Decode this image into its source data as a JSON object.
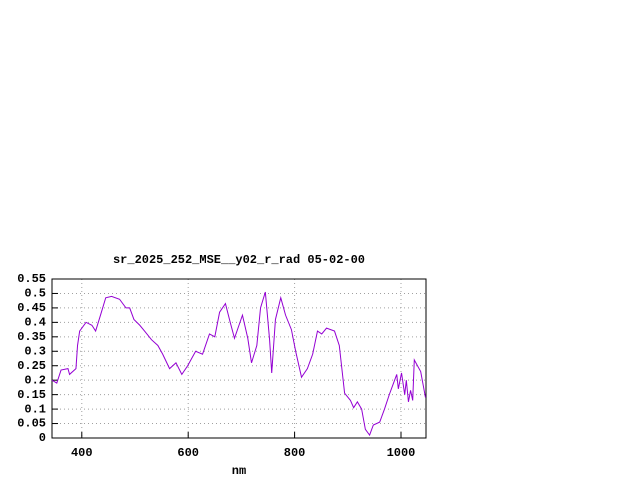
{
  "chart_data": {
    "type": "line",
    "title": "sr_2025_252_MSE__y02_r_rad 05-02-00",
    "x_label": "nm",
    "x": [
      344,
      353,
      361,
      374,
      377,
      389,
      392,
      396,
      408,
      419,
      426,
      436,
      445,
      456,
      471,
      483,
      490,
      498,
      509,
      518,
      531,
      543,
      552,
      565,
      577,
      588,
      599,
      614,
      627,
      640,
      650,
      659,
      670,
      679,
      687,
      702,
      712,
      719,
      729,
      736,
      745,
      753,
      757,
      764,
      774,
      783,
      794,
      802,
      813,
      824,
      834,
      843,
      851,
      860,
      875,
      884,
      894,
      905,
      911,
      918,
      926,
      933,
      941,
      948,
      960,
      969,
      978,
      986,
      992,
      995,
      1001,
      1007,
      1010,
      1014,
      1018,
      1022,
      1025,
      1031,
      1037,
      1042,
      1046
    ],
    "series": [
      {
        "color": "#9400d3",
        "values": [
          0.2,
          0.19,
          0.235,
          0.24,
          0.22,
          0.24,
          0.32,
          0.37,
          0.4,
          0.39,
          0.37,
          0.43,
          0.485,
          0.49,
          0.48,
          0.45,
          0.45,
          0.41,
          0.39,
          0.37,
          0.34,
          0.32,
          0.29,
          0.24,
          0.26,
          0.22,
          0.25,
          0.3,
          0.29,
          0.36,
          0.35,
          0.435,
          0.465,
          0.4,
          0.345,
          0.425,
          0.345,
          0.26,
          0.32,
          0.45,
          0.505,
          0.34,
          0.225,
          0.41,
          0.485,
          0.425,
          0.375,
          0.3,
          0.21,
          0.24,
          0.29,
          0.37,
          0.36,
          0.38,
          0.37,
          0.32,
          0.155,
          0.13,
          0.105,
          0.125,
          0.1,
          0.03,
          0.01,
          0.045,
          0.055,
          0.1,
          0.15,
          0.19,
          0.22,
          0.17,
          0.225,
          0.15,
          0.2,
          0.125,
          0.165,
          0.13,
          0.27,
          0.25,
          0.23,
          0.18,
          0.14
        ]
      }
    ],
    "xlim": [
      344,
      1047
    ],
    "xticks": [
      400,
      600,
      800,
      1000
    ],
    "ylim": [
      0,
      0.55
    ],
    "yticks": [
      0,
      0.05,
      0.1,
      0.15,
      0.2,
      0.25,
      0.3,
      0.35,
      0.4,
      0.45,
      0.5,
      0.55
    ],
    "grid": true
  }
}
